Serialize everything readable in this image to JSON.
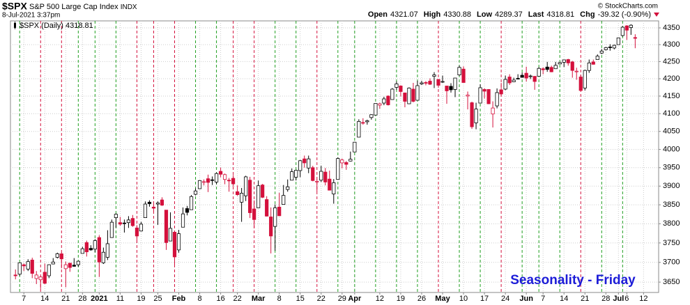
{
  "chart_data": {
    "type": "candlestick",
    "symbol": "$SPX",
    "name": "S&P 500 Large Cap Index",
    "exchange": "INDX",
    "timestamp": "8-Jul-2021 3:37pm",
    "copyright": "© StockCharts.com",
    "quote": [
      [
        "Open",
        "4321.07"
      ],
      [
        "High",
        "4330.88"
      ],
      [
        "Low",
        "4289.37"
      ],
      [
        "Last",
        "4318.81"
      ],
      [
        "Chg",
        "-39.32 (-0.90%)"
      ]
    ],
    "legend": {
      "label": "$SPX (Daily)",
      "value": "4318.81"
    },
    "annotation": "Seasonality - Friday",
    "annotation_color": "#1c1cd8",
    "up_color": "#000000",
    "down_color": "#d4103c",
    "log_scale": true,
    "grid": true,
    "xlim": [
      -1.2,
      153.6
    ],
    "ylim": [
      3624,
      4371
    ],
    "yticks": [
      3650,
      3700,
      3750,
      3800,
      3850,
      3900,
      3950,
      4000,
      4050,
      4100,
      4150,
      4200,
      4250,
      4300,
      4350
    ],
    "xticks": [
      {
        "value": 2,
        "label": "7"
      },
      {
        "value": 7,
        "label": "14"
      },
      {
        "value": 12,
        "label": "21"
      },
      {
        "value": 16,
        "label": "28"
      },
      {
        "value": 20,
        "label": "2021"
      },
      {
        "value": 25,
        "label": "11"
      },
      {
        "value": 30,
        "label": "19"
      },
      {
        "value": 34,
        "label": "25"
      },
      {
        "value": 39,
        "label": "Feb"
      },
      {
        "value": 44,
        "label": "8"
      },
      {
        "value": 49,
        "label": "16"
      },
      {
        "value": 53,
        "label": "22"
      },
      {
        "value": 58,
        "label": "Mar"
      },
      {
        "value": 63,
        "label": "8"
      },
      {
        "value": 68,
        "label": "15"
      },
      {
        "value": 73,
        "label": "22"
      },
      {
        "value": 78,
        "label": "29"
      },
      {
        "value": 81,
        "label": "Apr"
      },
      {
        "value": 87,
        "label": "12"
      },
      {
        "value": 92,
        "label": "19"
      },
      {
        "value": 97,
        "label": "26"
      },
      {
        "value": 102,
        "label": "May"
      },
      {
        "value": 107,
        "label": "10"
      },
      {
        "value": 112,
        "label": "17"
      },
      {
        "value": 117,
        "label": "24"
      },
      {
        "value": 122,
        "label": "Jun"
      },
      {
        "value": 126,
        "label": "7"
      },
      {
        "value": 131,
        "label": "14"
      },
      {
        "value": 136,
        "label": "21"
      },
      {
        "value": 141,
        "label": "28"
      },
      {
        "value": 144,
        "label": "Jul"
      },
      {
        "value": 146,
        "label": "6"
      },
      {
        "value": 150,
        "label": "12"
      }
    ],
    "friday_lines": [
      {
        "x": 1,
        "color": "#1e9e1e"
      },
      {
        "x": 6,
        "color": "#d4103c"
      },
      {
        "x": 11,
        "color": "#d4103c"
      },
      {
        "x": 15,
        "color": "#1e9e1e"
      },
      {
        "x": 19,
        "color": "#1e9e1e"
      },
      {
        "x": 24,
        "color": "#1e9e1e"
      },
      {
        "x": 29,
        "color": "#d4103c"
      },
      {
        "x": 33,
        "color": "#d4103c"
      },
      {
        "x": 38,
        "color": "#d4103c"
      },
      {
        "x": 43,
        "color": "#1e9e1e"
      },
      {
        "x": 48,
        "color": "#1e9e1e"
      },
      {
        "x": 52,
        "color": "#d4103c"
      },
      {
        "x": 57,
        "color": "#d4103c"
      },
      {
        "x": 62,
        "color": "#1e9e1e"
      },
      {
        "x": 67,
        "color": "#1e9e1e"
      },
      {
        "x": 72,
        "color": "#d4103c"
      },
      {
        "x": 77,
        "color": "#1e9e1e"
      },
      {
        "x": 81,
        "color": "#1e9e1e"
      },
      {
        "x": 86,
        "color": "#1e9e1e"
      },
      {
        "x": 91,
        "color": "#1e9e1e"
      },
      {
        "x": 96,
        "color": "#1e9e1e"
      },
      {
        "x": 101,
        "color": "#d4103c"
      },
      {
        "x": 106,
        "color": "#1e9e1e"
      },
      {
        "x": 111,
        "color": "#1e9e1e"
      },
      {
        "x": 116,
        "color": "#d4103c"
      },
      {
        "x": 121,
        "color": "#1e9e1e"
      },
      {
        "x": 125,
        "color": "#1e9e1e"
      },
      {
        "x": 130,
        "color": "#1e9e1e"
      },
      {
        "x": 135,
        "color": "#d4103c"
      },
      {
        "x": 140,
        "color": "#1e9e1e"
      },
      {
        "x": 145,
        "color": "#1e9e1e"
      }
    ],
    "candles": [
      [
        3668,
        3682,
        3657,
        3666
      ],
      [
        3670,
        3699,
        3666,
        3699
      ],
      [
        3694,
        3697,
        3678,
        3691
      ],
      [
        3683,
        3708,
        3678,
        3702
      ],
      [
        3706,
        3712,
        3660,
        3672
      ],
      [
        3659,
        3678,
        3645,
        3668
      ],
      [
        3656,
        3665,
        3633,
        3663
      ],
      [
        3675,
        3697,
        3645,
        3647
      ],
      [
        3666,
        3695,
        3660,
        3694
      ],
      [
        3696,
        3711,
        3695,
        3701
      ],
      [
        3713,
        3725,
        3710,
        3722
      ],
      [
        3722,
        3726,
        3685,
        3709
      ],
      [
        3684,
        3702,
        3637,
        3694
      ],
      [
        3698,
        3698,
        3676,
        3687
      ],
      [
        3693,
        3711,
        3689,
        3690
      ],
      [
        3694,
        3704,
        3689,
        3703
      ],
      [
        3723,
        3740,
        3723,
        3735
      ],
      [
        3751,
        3756,
        3715,
        3727
      ],
      [
        3736,
        3744,
        3730,
        3732
      ],
      [
        3734,
        3760,
        3726,
        3756
      ],
      [
        3764,
        3770,
        3663,
        3701
      ],
      [
        3699,
        3738,
        3696,
        3726
      ],
      [
        3713,
        3783,
        3706,
        3748
      ],
      [
        3764,
        3811,
        3764,
        3804
      ],
      [
        3816,
        3827,
        3790,
        3825
      ],
      [
        3803,
        3818,
        3795,
        3799
      ],
      [
        3802,
        3811,
        3777,
        3801
      ],
      [
        3803,
        3820,
        3789,
        3810
      ],
      [
        3814,
        3823,
        3792,
        3795
      ],
      [
        3789,
        3796,
        3750,
        3768
      ],
      [
        3781,
        3805,
        3780,
        3799
      ],
      [
        3816,
        3859,
        3816,
        3852
      ],
      [
        3857,
        3862,
        3845,
        3853
      ],
      [
        3844,
        3852,
        3831,
        3841
      ],
      [
        3852,
        3859,
        3797,
        3855
      ],
      [
        3863,
        3870,
        3847,
        3849
      ],
      [
        3836,
        3836,
        3732,
        3751
      ],
      [
        3755,
        3830,
        3755,
        3788
      ],
      [
        3778,
        3778,
        3694,
        3714
      ],
      [
        3732,
        3784,
        3725,
        3774
      ],
      [
        3791,
        3843,
        3791,
        3826
      ],
      [
        3840,
        3847,
        3822,
        3830
      ],
      [
        3837,
        3876,
        3837,
        3872
      ],
      [
        3878,
        3894,
        3875,
        3887
      ],
      [
        3893,
        3916,
        3892,
        3915
      ],
      [
        3910,
        3918,
        3902,
        3912
      ],
      [
        3920,
        3931,
        3884,
        3910
      ],
      [
        3917,
        3926,
        3903,
        3916
      ],
      [
        3911,
        3937,
        3905,
        3934
      ],
      [
        3940,
        3950,
        3924,
        3932
      ],
      [
        3918,
        3934,
        3905,
        3931
      ],
      [
        3916,
        3922,
        3885,
        3914
      ],
      [
        3921,
        3930,
        3899,
        3906
      ],
      [
        3885,
        3902,
        3874,
        3877
      ],
      [
        3857,
        3895,
        3805,
        3881
      ],
      [
        3874,
        3928,
        3860,
        3925
      ],
      [
        3916,
        3925,
        3815,
        3829
      ],
      [
        3839,
        3862,
        3789,
        3811
      ],
      [
        3842,
        3915,
        3842,
        3901
      ],
      [
        3903,
        3906,
        3868,
        3870
      ],
      [
        3864,
        3873,
        3819,
        3820
      ],
      [
        3818,
        3843,
        3723,
        3768
      ],
      [
        3793,
        3851,
        3730,
        3842
      ],
      [
        3844,
        3882,
        3820,
        3821
      ],
      [
        3851,
        3903,
        3851,
        3875
      ],
      [
        3891,
        3918,
        3885,
        3898
      ],
      [
        3916,
        3948,
        3916,
        3939
      ],
      [
        3924,
        3944,
        3915,
        3943
      ],
      [
        3942,
        3971,
        3924,
        3969
      ],
      [
        3974,
        3983,
        3950,
        3963
      ],
      [
        3949,
        3983,
        3935,
        3974
      ],
      [
        3950,
        3955,
        3913,
        3915
      ],
      [
        3913,
        3919,
        3885,
        3913
      ],
      [
        3916,
        3955,
        3911,
        3940
      ],
      [
        3938,
        3949,
        3902,
        3911
      ],
      [
        3919,
        3942,
        3889,
        3889
      ],
      [
        3879,
        3919,
        3853,
        3909
      ],
      [
        3918,
        3978,
        3917,
        3975
      ],
      [
        3963,
        3975,
        3948,
        3971
      ],
      [
        3964,
        3968,
        3944,
        3959
      ],
      [
        3968,
        3994,
        3967,
        3973
      ],
      [
        3993,
        4021,
        3993,
        4020
      ],
      [
        4034,
        4084,
        4034,
        4078
      ],
      [
        4075,
        4087,
        4069,
        4074
      ],
      [
        4077,
        4083,
        4069,
        4080
      ],
      [
        4089,
        4098,
        4083,
        4097
      ],
      [
        4096,
        4129,
        4096,
        4129
      ],
      [
        4124,
        4131,
        4114,
        4128
      ],
      [
        4130,
        4148,
        4124,
        4142
      ],
      [
        4150,
        4152,
        4123,
        4125
      ],
      [
        4140,
        4173,
        4140,
        4170
      ],
      [
        4175,
        4192,
        4168,
        4185
      ],
      [
        4179,
        4181,
        4149,
        4163
      ],
      [
        4159,
        4160,
        4118,
        4135
      ],
      [
        4128,
        4175,
        4127,
        4173
      ],
      [
        4170,
        4188,
        4132,
        4135
      ],
      [
        4138,
        4194,
        4138,
        4180
      ],
      [
        4185,
        4194,
        4182,
        4188
      ],
      [
        4189,
        4193,
        4181,
        4187
      ],
      [
        4193,
        4201,
        4182,
        4184
      ],
      [
        4207,
        4219,
        4173,
        4211
      ],
      [
        4198,
        4199,
        4174,
        4181
      ],
      [
        4191,
        4209,
        4188,
        4192
      ],
      [
        4179,
        4179,
        4128,
        4165
      ],
      [
        4178,
        4187,
        4160,
        4168
      ],
      [
        4169,
        4202,
        4147,
        4202
      ],
      [
        4211,
        4238,
        4208,
        4233
      ],
      [
        4228,
        4236,
        4188,
        4189
      ],
      [
        4150,
        4163,
        4112,
        4153
      ],
      [
        4131,
        4134,
        4057,
        4063
      ],
      [
        4074,
        4131,
        4056,
        4113
      ],
      [
        4130,
        4184,
        4129,
        4174
      ],
      [
        4169,
        4172,
        4143,
        4164
      ],
      [
        4169,
        4170,
        4127,
        4128
      ],
      [
        4099,
        4135,
        4061,
        4116
      ],
      [
        4122,
        4172,
        4115,
        4160
      ],
      [
        4168,
        4188,
        4151,
        4156
      ],
      [
        4170,
        4209,
        4167,
        4198
      ],
      [
        4205,
        4213,
        4182,
        4188
      ],
      [
        4191,
        4203,
        4190,
        4196
      ],
      [
        4201,
        4213,
        4198,
        4200
      ],
      [
        4210,
        4218,
        4203,
        4204
      ],
      [
        4216,
        4235,
        4192,
        4202
      ],
      [
        4206,
        4212,
        4199,
        4208
      ],
      [
        4207,
        4207,
        4168,
        4192
      ],
      [
        4207,
        4234,
        4207,
        4230
      ],
      [
        4229,
        4233,
        4213,
        4226
      ],
      [
        4234,
        4249,
        4220,
        4227
      ],
      [
        4233,
        4238,
        4219,
        4220
      ],
      [
        4229,
        4249,
        4229,
        4239
      ],
      [
        4243,
        4249,
        4242,
        4247
      ],
      [
        4248,
        4255,
        4234,
        4255
      ],
      [
        4256,
        4258,
        4238,
        4246
      ],
      [
        4249,
        4252,
        4203,
        4224
      ],
      [
        4220,
        4232,
        4197,
        4222
      ],
      [
        4205,
        4211,
        4165,
        4166
      ],
      [
        4173,
        4226,
        4166,
        4224
      ],
      [
        4224,
        4256,
        4217,
        4246
      ],
      [
        4249,
        4256,
        4241,
        4242
      ],
      [
        4256,
        4271,
        4256,
        4266
      ],
      [
        4275,
        4287,
        4272,
        4281
      ],
      [
        4285,
        4293,
        4283,
        4291
      ],
      [
        4293,
        4301,
        4282,
        4291
      ],
      [
        4290,
        4300,
        4286,
        4298
      ],
      [
        4300,
        4321,
        4300,
        4320
      ],
      [
        4327,
        4355,
        4324,
        4352
      ],
      [
        4356,
        4358,
        4314,
        4343
      ],
      [
        4351,
        4361,
        4329,
        4358
      ],
      [
        4321.07,
        4330.88,
        4289.37,
        4318.81
      ]
    ]
  }
}
